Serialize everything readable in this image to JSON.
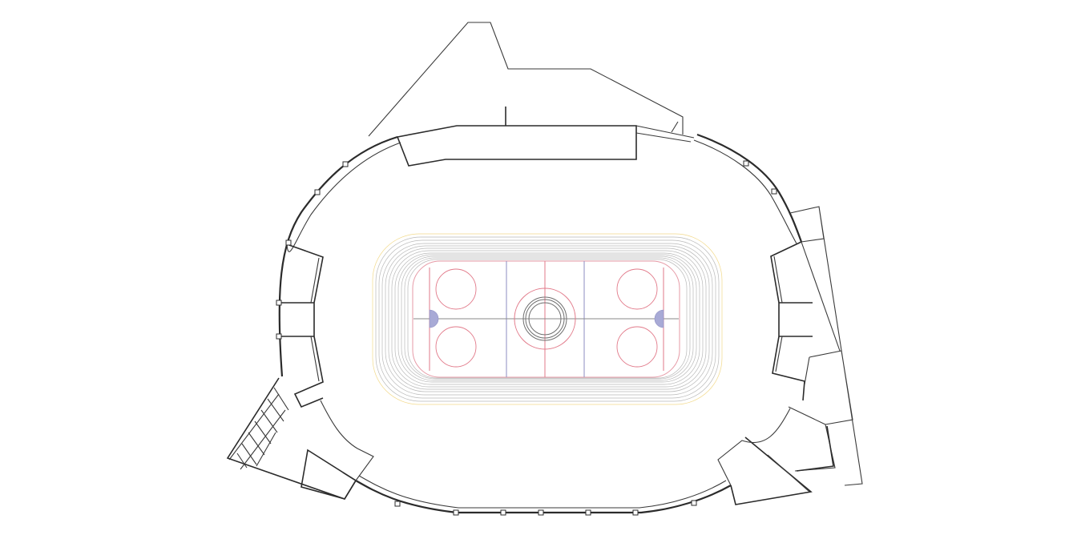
{
  "map": {
    "type": "arena-floor-plan",
    "colors": {
      "wall": "#2b2b2b",
      "seating_outer": "#f2d98a",
      "seating_row": "#b9b9b9",
      "rink_boards": "#e69aa6",
      "red_line": "#e27a8a",
      "blue_line": "#8e8ec2",
      "crease_fill": "#a8aad6",
      "center_ring": "#6e6e6e"
    },
    "icons": [
      "column-post-marker"
    ]
  }
}
